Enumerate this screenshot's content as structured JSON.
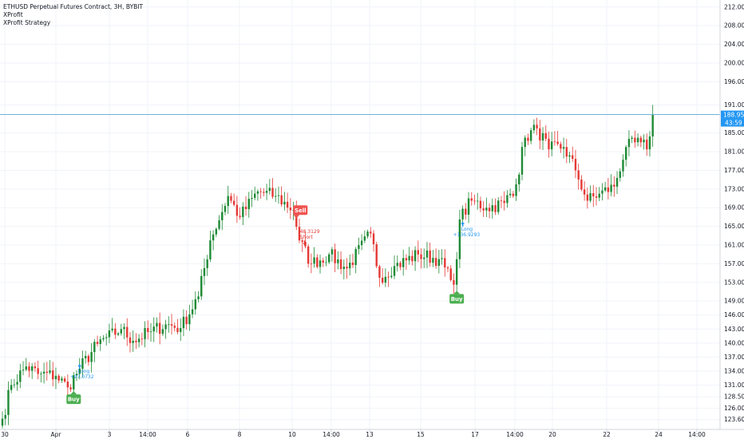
{
  "header": {
    "title": "ETHUSD Perpetual Futures Contract, 3H, BYBIT",
    "indicators": [
      "XProfit",
      "XProfit Strategy"
    ]
  },
  "price_axis": {
    "last_price": "188.95",
    "countdown": "43:59",
    "last_price_color": "#2196f3"
  },
  "colors": {
    "up": "#1e8a35",
    "down": "#e53935",
    "buy_badge": "#4caf50",
    "sell_badge": "#ef5350",
    "long_marker": "#2196f3",
    "short_marker": "#e53935",
    "price_line": "#5ba7d9",
    "grid": "#f0f3fa"
  },
  "chart_data": {
    "type": "candlestick",
    "ylim": [
      121.5,
      213.5
    ],
    "y_ticks": [
      "212.00",
      "208.00",
      "204.00",
      "200.00",
      "196.00",
      "191.00",
      "188.95",
      "185.00",
      "181.00",
      "177.00",
      "173.00",
      "169.00",
      "165.00",
      "161.00",
      "157.00",
      "153.00",
      "149.00",
      "146.00",
      "143.00",
      "140.00",
      "137.00",
      "134.00",
      "131.00",
      "128.50",
      "126.00",
      "123.60"
    ],
    "x_ticks": [
      "30",
      "Apr",
      "3",
      "14:00",
      "6",
      "8",
      "10",
      "14:00",
      "13",
      "15",
      "17",
      "14:00",
      "20",
      "22",
      "24",
      "14:00"
    ],
    "anchors": [
      {
        "t": 0,
        "close": 123.8
      },
      {
        "t": 3,
        "close": 131.0
      },
      {
        "t": 8,
        "close": 135.0
      },
      {
        "t": 12,
        "close": 133.4
      },
      {
        "t": 18,
        "close": 133.0
      },
      {
        "t": 22,
        "close": 130.5
      },
      {
        "t": 26,
        "close": 134.5
      },
      {
        "t": 32,
        "close": 139.8
      },
      {
        "t": 40,
        "close": 143.0
      },
      {
        "t": 44,
        "close": 140.5
      },
      {
        "t": 50,
        "close": 142.5
      },
      {
        "t": 55,
        "close": 144.0
      },
      {
        "t": 60,
        "close": 143.2
      },
      {
        "t": 66,
        "close": 150.0
      },
      {
        "t": 70,
        "close": 162.0
      },
      {
        "t": 76,
        "close": 171.5
      },
      {
        "t": 80,
        "close": 167.0
      },
      {
        "t": 86,
        "close": 172.5
      },
      {
        "t": 92,
        "close": 171.5
      },
      {
        "t": 98,
        "close": 168.5
      },
      {
        "t": 100,
        "close": 162.0
      },
      {
        "t": 104,
        "close": 157.0
      },
      {
        "t": 110,
        "close": 159.0
      },
      {
        "t": 116,
        "close": 156.0
      },
      {
        "t": 124,
        "close": 163.5
      },
      {
        "t": 127,
        "close": 154.0
      },
      {
        "t": 132,
        "close": 156.5
      },
      {
        "t": 140,
        "close": 159.0
      },
      {
        "t": 147,
        "close": 158.0
      },
      {
        "t": 151,
        "close": 153.5
      },
      {
        "t": 152,
        "close": 152.5
      },
      {
        "t": 154,
        "close": 166.5
      },
      {
        "t": 158,
        "close": 170.5
      },
      {
        "t": 163,
        "close": 169.0
      },
      {
        "t": 169,
        "close": 170.0
      },
      {
        "t": 173,
        "close": 174.0
      },
      {
        "t": 176,
        "close": 184.0
      },
      {
        "t": 180,
        "close": 186.0
      },
      {
        "t": 184,
        "close": 181.5
      },
      {
        "t": 189,
        "close": 182.0
      },
      {
        "t": 193,
        "close": 177.0
      },
      {
        "t": 197,
        "close": 170.5
      },
      {
        "t": 201,
        "close": 172.0
      },
      {
        "t": 206,
        "close": 173.5
      },
      {
        "t": 210,
        "close": 182.0
      },
      {
        "t": 215,
        "close": 183.0
      },
      {
        "t": 217,
        "close": 181.5
      },
      {
        "t": 219,
        "close": 188.95
      }
    ],
    "signals": [
      {
        "type": "buy",
        "t": 24,
        "price": 129.0,
        "label": "Buy"
      },
      {
        "type": "long",
        "t": 26,
        "price": 135.5,
        "label": "Long",
        "value": "+97.0732"
      },
      {
        "type": "sell",
        "t": 99,
        "price": 169.5,
        "label": "Sell"
      },
      {
        "type": "short",
        "t": 101,
        "price": 162.5,
        "label": "Short",
        "value": "48.3129"
      },
      {
        "type": "buy",
        "t": 153,
        "price": 150.5,
        "label": "Buy"
      },
      {
        "type": "long",
        "t": 155,
        "price": 166.0,
        "label": "Long",
        "value": "+136.9293"
      }
    ]
  }
}
